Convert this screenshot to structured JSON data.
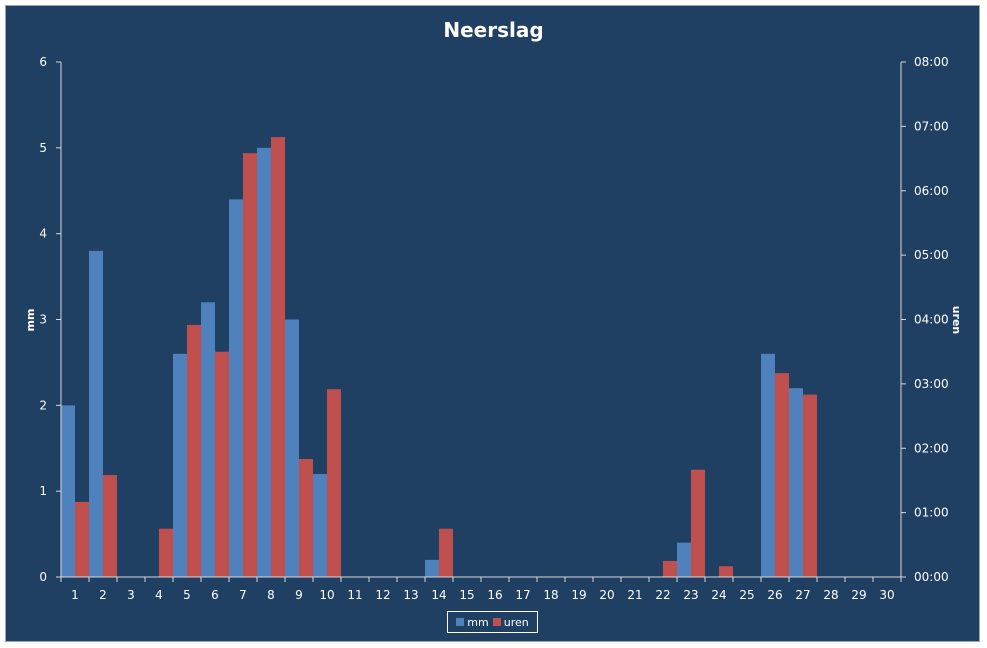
{
  "chart_data": {
    "type": "bar",
    "title": "Neerslag",
    "xlabel": "",
    "ylabel": "mm",
    "y2label": "uren",
    "categories": [
      "1",
      "2",
      "3",
      "4",
      "5",
      "6",
      "7",
      "8",
      "9",
      "10",
      "11",
      "12",
      "13",
      "14",
      "15",
      "16",
      "17",
      "18",
      "19",
      "20",
      "21",
      "22",
      "23",
      "24",
      "25",
      "26",
      "27",
      "28",
      "29",
      "30"
    ],
    "ylim": [
      0,
      6
    ],
    "yticks": [
      "0",
      "1",
      "2",
      "3",
      "4",
      "5",
      "6"
    ],
    "y2lim_minutes": [
      0,
      480
    ],
    "y2ticks": [
      "00:00",
      "01:00",
      "02:00",
      "03:00",
      "04:00",
      "05:00",
      "06:00",
      "07:00",
      "08:00"
    ],
    "series": [
      {
        "name": "mm",
        "axis": "left",
        "color": "#4f81bd",
        "values": [
          2.0,
          3.8,
          0,
          0,
          2.6,
          3.2,
          4.4,
          5.0,
          3.0,
          1.2,
          0,
          0,
          0,
          0.2,
          0,
          0,
          0,
          0,
          0,
          0,
          0,
          0,
          0.4,
          0,
          0,
          2.6,
          2.2,
          0,
          0,
          0
        ]
      },
      {
        "name": "uren",
        "axis": "right",
        "unit": "minutes",
        "color": "#c0504d",
        "values": [
          70,
          95,
          0,
          45,
          235,
          210,
          395,
          410,
          110,
          175,
          0,
          0,
          0,
          45,
          0,
          0,
          0,
          0,
          0,
          0,
          0,
          15,
          100,
          10,
          0,
          190,
          170,
          0,
          0,
          0
        ]
      }
    ],
    "grid": false,
    "legend_position": "bottom"
  },
  "colors": {
    "background": "#1f3f63",
    "text": "#ffffff",
    "axis": "#d9d9d9"
  }
}
